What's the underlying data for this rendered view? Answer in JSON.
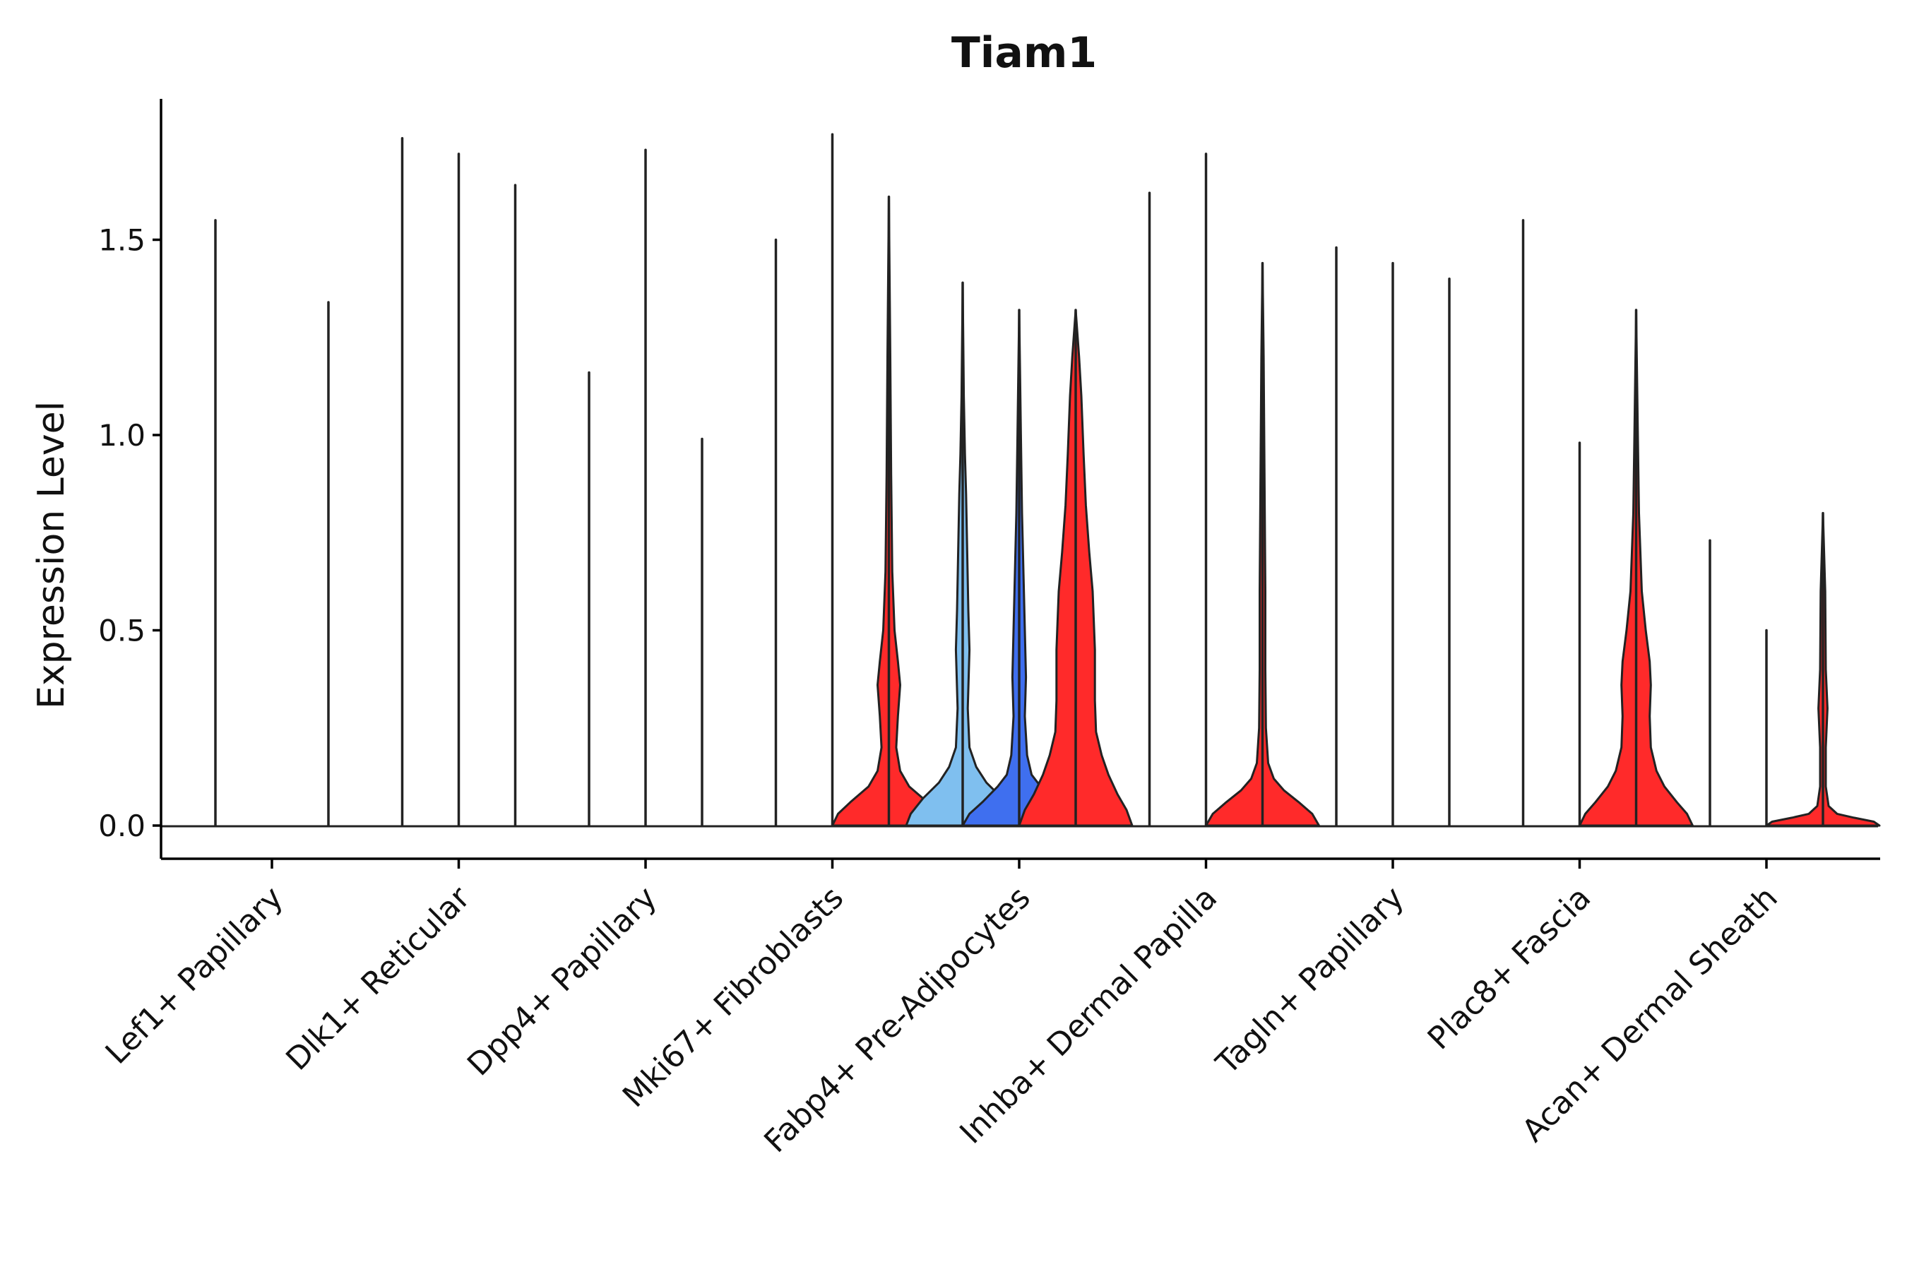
{
  "chart_data": {
    "type": "violin",
    "title": "Tiam1",
    "xlabel": "",
    "ylabel": "Expression Level",
    "ylim": [
      -0.09,
      1.85
    ],
    "yticks": [
      {
        "value": 0.0,
        "label": "0.0"
      },
      {
        "value": 0.5,
        "label": "0.5"
      },
      {
        "value": 1.0,
        "label": "1.0"
      },
      {
        "value": 1.5,
        "label": "1.5"
      }
    ],
    "categories": [
      "Lef1+ Papillary",
      "Dlk1+ Reticular",
      "Dpp4+ Papillary",
      "Mki67+ Fibroblasts",
      "Fabp4+ Pre-Adipocytes",
      "Inhba+ Dermal Papilla",
      "Tagln+ Papillary",
      "Plac8+ Fascia",
      "Acan+ Dermal Sheath"
    ],
    "groups_per_category": 3,
    "colors": {
      "red": "#ff2a2a",
      "light_blue": "#7fbfef",
      "blue": "#3f6fef",
      "none": "none",
      "stroke": "#222222",
      "axis": "#000000"
    },
    "violins": [
      {
        "category": 0,
        "group": 0,
        "max": 1.55,
        "fill": "none",
        "profile": []
      },
      {
        "category": 0,
        "group": 1,
        "max": 0.0,
        "fill": "none",
        "profile": []
      },
      {
        "category": 0,
        "group": 2,
        "max": 1.34,
        "fill": "none",
        "profile": []
      },
      {
        "category": 1,
        "group": 0,
        "max": 1.76,
        "fill": "none",
        "profile": []
      },
      {
        "category": 1,
        "group": 1,
        "max": 1.72,
        "fill": "none",
        "profile": []
      },
      {
        "category": 1,
        "group": 2,
        "max": 1.64,
        "fill": "none",
        "profile": []
      },
      {
        "category": 2,
        "group": 0,
        "max": 1.16,
        "fill": "none",
        "profile": []
      },
      {
        "category": 2,
        "group": 1,
        "max": 1.73,
        "fill": "none",
        "profile": []
      },
      {
        "category": 2,
        "group": 2,
        "max": 0.99,
        "fill": "none",
        "profile": []
      },
      {
        "category": 3,
        "group": 0,
        "max": 1.5,
        "fill": "none",
        "profile": []
      },
      {
        "category": 3,
        "group": 1,
        "max": 1.77,
        "fill": "none",
        "profile": []
      },
      {
        "category": 3,
        "group": 2,
        "max": 1.61,
        "fill": "red",
        "profile": [
          [
            0.0,
            1.0
          ],
          [
            0.03,
            0.9
          ],
          [
            0.06,
            0.68
          ],
          [
            0.1,
            0.36
          ],
          [
            0.14,
            0.2
          ],
          [
            0.2,
            0.13
          ],
          [
            0.28,
            0.16
          ],
          [
            0.36,
            0.2
          ],
          [
            0.42,
            0.16
          ],
          [
            0.5,
            0.1
          ],
          [
            0.65,
            0.06
          ],
          [
            0.9,
            0.04
          ],
          [
            1.2,
            0.025
          ],
          [
            1.61,
            0.0
          ]
        ]
      },
      {
        "category": 4,
        "group": 0,
        "max": 1.39,
        "fill": "light_blue",
        "profile": [
          [
            0.0,
            1.0
          ],
          [
            0.03,
            0.92
          ],
          [
            0.07,
            0.7
          ],
          [
            0.11,
            0.42
          ],
          [
            0.15,
            0.24
          ],
          [
            0.2,
            0.12
          ],
          [
            0.3,
            0.09
          ],
          [
            0.45,
            0.12
          ],
          [
            0.55,
            0.1
          ],
          [
            0.7,
            0.08
          ],
          [
            0.85,
            0.06
          ],
          [
            0.95,
            0.04
          ],
          [
            1.1,
            0.02
          ],
          [
            1.39,
            0.0
          ]
        ]
      },
      {
        "category": 4,
        "group": 1,
        "max": 1.32,
        "fill": "blue",
        "profile": [
          [
            0.0,
            1.0
          ],
          [
            0.03,
            0.88
          ],
          [
            0.06,
            0.65
          ],
          [
            0.1,
            0.38
          ],
          [
            0.13,
            0.22
          ],
          [
            0.18,
            0.14
          ],
          [
            0.28,
            0.1
          ],
          [
            0.38,
            0.12
          ],
          [
            0.5,
            0.1
          ],
          [
            0.62,
            0.08
          ],
          [
            0.8,
            0.05
          ],
          [
            1.0,
            0.03
          ],
          [
            1.32,
            0.0
          ]
        ]
      },
      {
        "category": 4,
        "group": 2,
        "max": 1.32,
        "fill": "red",
        "profile": [
          [
            0.0,
            1.0
          ],
          [
            0.04,
            0.9
          ],
          [
            0.08,
            0.74
          ],
          [
            0.13,
            0.58
          ],
          [
            0.18,
            0.46
          ],
          [
            0.24,
            0.36
          ],
          [
            0.32,
            0.34
          ],
          [
            0.45,
            0.34
          ],
          [
            0.6,
            0.3
          ],
          [
            0.7,
            0.24
          ],
          [
            0.82,
            0.18
          ],
          [
            0.95,
            0.14
          ],
          [
            1.1,
            0.1
          ],
          [
            1.2,
            0.06
          ],
          [
            1.32,
            0.0
          ]
        ]
      },
      {
        "category": 5,
        "group": 0,
        "max": 1.62,
        "fill": "none",
        "profile": []
      },
      {
        "category": 5,
        "group": 1,
        "max": 1.72,
        "fill": "none",
        "profile": []
      },
      {
        "category": 5,
        "group": 2,
        "max": 1.44,
        "fill": "red",
        "profile": [
          [
            0.0,
            1.0
          ],
          [
            0.03,
            0.88
          ],
          [
            0.06,
            0.64
          ],
          [
            0.09,
            0.38
          ],
          [
            0.12,
            0.2
          ],
          [
            0.16,
            0.1
          ],
          [
            0.25,
            0.06
          ],
          [
            0.4,
            0.05
          ],
          [
            0.6,
            0.05
          ],
          [
            0.8,
            0.04
          ],
          [
            1.0,
            0.03
          ],
          [
            1.2,
            0.02
          ],
          [
            1.44,
            0.0
          ]
        ]
      },
      {
        "category": 6,
        "group": 0,
        "max": 1.48,
        "fill": "none",
        "profile": []
      },
      {
        "category": 6,
        "group": 1,
        "max": 1.44,
        "fill": "none",
        "profile": []
      },
      {
        "category": 6,
        "group": 2,
        "max": 1.4,
        "fill": "none",
        "profile": []
      },
      {
        "category": 7,
        "group": 0,
        "max": 1.55,
        "fill": "none",
        "profile": []
      },
      {
        "category": 7,
        "group": 1,
        "max": 0.98,
        "fill": "none",
        "profile": []
      },
      {
        "category": 7,
        "group": 2,
        "max": 1.32,
        "fill": "red",
        "profile": [
          [
            0.0,
            1.0
          ],
          [
            0.03,
            0.9
          ],
          [
            0.06,
            0.72
          ],
          [
            0.1,
            0.5
          ],
          [
            0.14,
            0.36
          ],
          [
            0.2,
            0.26
          ],
          [
            0.28,
            0.24
          ],
          [
            0.36,
            0.26
          ],
          [
            0.42,
            0.24
          ],
          [
            0.5,
            0.17
          ],
          [
            0.6,
            0.1
          ],
          [
            0.8,
            0.05
          ],
          [
            1.0,
            0.03
          ],
          [
            1.32,
            0.0
          ]
        ]
      },
      {
        "category": 8,
        "group": 0,
        "max": 0.73,
        "fill": "none",
        "profile": []
      },
      {
        "category": 8,
        "group": 1,
        "max": 0.5,
        "fill": "none",
        "profile": []
      },
      {
        "category": 8,
        "group": 2,
        "max": 0.8,
        "fill": "red",
        "profile": [
          [
            0.0,
            1.0
          ],
          [
            0.01,
            0.9
          ],
          [
            0.02,
            0.55
          ],
          [
            0.03,
            0.25
          ],
          [
            0.05,
            0.1
          ],
          [
            0.1,
            0.05
          ],
          [
            0.2,
            0.05
          ],
          [
            0.3,
            0.08
          ],
          [
            0.4,
            0.05
          ],
          [
            0.6,
            0.04
          ],
          [
            0.8,
            0.0
          ]
        ]
      }
    ]
  }
}
